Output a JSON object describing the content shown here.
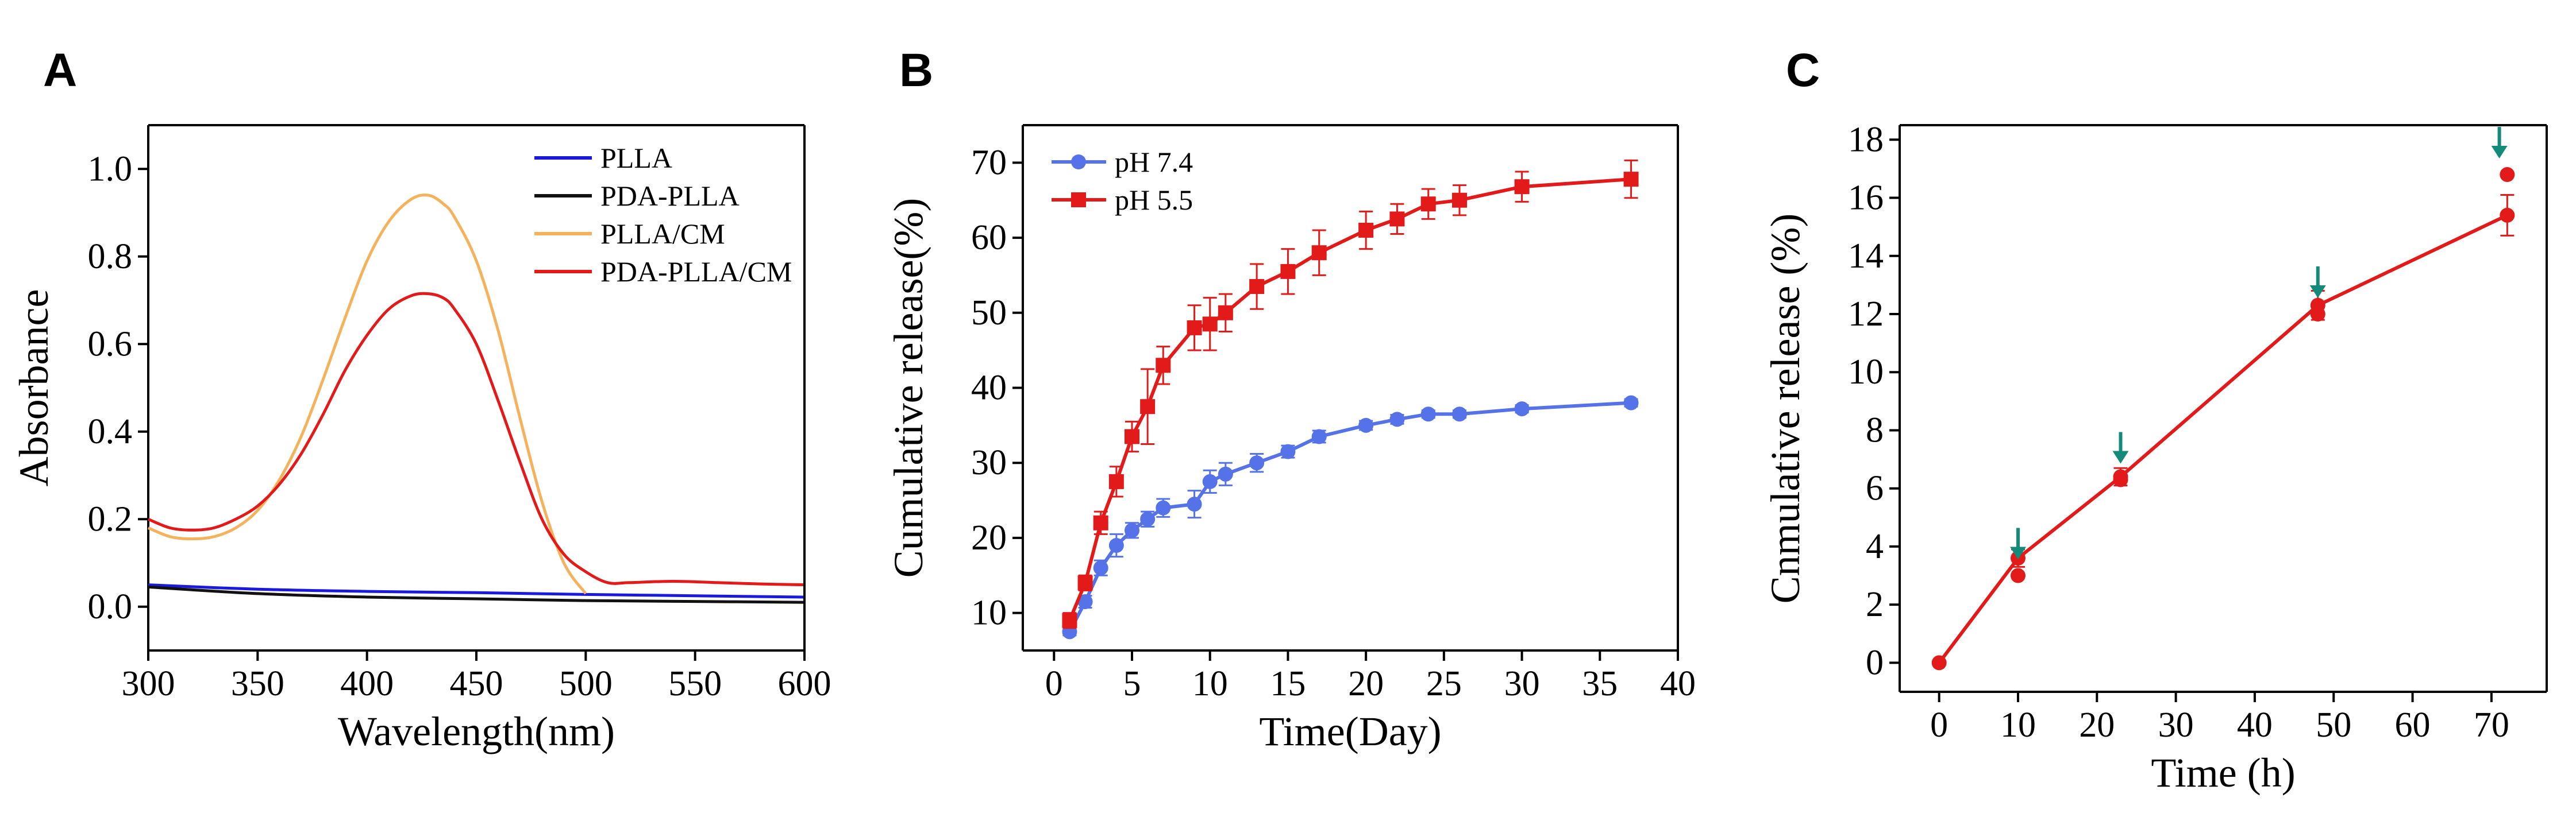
{
  "colors": {
    "axis": "#000000",
    "pllA": "#1a1adc",
    "pdaPlla": "#111111",
    "pllaCm": "#f4b25c",
    "pdaPllaCm": "#e21a1a",
    "ph74": "#5572e8",
    "ph55": "#e21a1a",
    "cRelease": "#e21a1a",
    "arrow": "#138a7a"
  },
  "chart_data": [
    {
      "panel": "A",
      "type": "line",
      "xlabel": "Wavelength(nm)",
      "ylabel": "Absorbance",
      "xlim": [
        300,
        600
      ],
      "ylim": [
        -0.1,
        1.1
      ],
      "xticks": [
        300,
        350,
        400,
        450,
        500,
        550,
        600
      ],
      "yticks": [
        0.0,
        0.2,
        0.4,
        0.6,
        0.8,
        1.0
      ],
      "xtick_labels": [
        "300",
        "350",
        "400",
        "450",
        "500",
        "550",
        "600"
      ],
      "ytick_labels": [
        "0.0",
        "0.2",
        "0.4",
        "0.6",
        "0.8",
        "1.0"
      ],
      "legend": "top-right",
      "series": [
        {
          "name": "PLLA",
          "color_key": "pllA",
          "x": [
            300,
            350,
            400,
            450,
            500,
            550,
            600
          ],
          "y": [
            0.05,
            0.04,
            0.035,
            0.032,
            0.028,
            0.025,
            0.022
          ]
        },
        {
          "name": "PDA-PLLA",
          "color_key": "pdaPlla",
          "x": [
            300,
            350,
            400,
            450,
            500,
            550,
            600
          ],
          "y": [
            0.045,
            0.03,
            0.022,
            0.018,
            0.014,
            0.012,
            0.01
          ]
        },
        {
          "name": "PLLA/CM",
          "color_key": "pllaCm",
          "x": [
            300,
            310,
            320,
            330,
            340,
            350,
            360,
            370,
            380,
            390,
            400,
            410,
            420,
            428,
            435,
            440,
            450,
            460,
            470,
            480,
            490,
            500
          ],
          "y": [
            0.18,
            0.16,
            0.155,
            0.16,
            0.18,
            0.22,
            0.29,
            0.39,
            0.52,
            0.66,
            0.79,
            0.88,
            0.93,
            0.94,
            0.92,
            0.89,
            0.79,
            0.63,
            0.43,
            0.24,
            0.1,
            0.03
          ]
        },
        {
          "name": "PDA-PLLA/CM",
          "color_key": "pdaPllaCm",
          "x": [
            300,
            310,
            320,
            330,
            340,
            350,
            360,
            370,
            380,
            390,
            400,
            410,
            420,
            428,
            435,
            440,
            450,
            460,
            470,
            480,
            490,
            500,
            510,
            520,
            540,
            560,
            580,
            600
          ],
          "y": [
            0.2,
            0.18,
            0.175,
            0.18,
            0.2,
            0.23,
            0.28,
            0.35,
            0.44,
            0.54,
            0.62,
            0.68,
            0.71,
            0.715,
            0.705,
            0.68,
            0.6,
            0.47,
            0.33,
            0.2,
            0.12,
            0.08,
            0.055,
            0.055,
            0.058,
            0.055,
            0.052,
            0.05
          ]
        }
      ]
    },
    {
      "panel": "B",
      "type": "line",
      "xlabel": "Time(Day)",
      "ylabel": "Cumulative release(%)",
      "xlim": [
        -2,
        40
      ],
      "ylim": [
        5,
        75
      ],
      "xticks": [
        0,
        5,
        10,
        15,
        20,
        25,
        30,
        35,
        40
      ],
      "yticks": [
        10,
        20,
        30,
        40,
        50,
        60,
        70
      ],
      "xtick_labels": [
        "0",
        "5",
        "10",
        "15",
        "20",
        "25",
        "30",
        "35",
        "40"
      ],
      "ytick_labels": [
        "10",
        "20",
        "30",
        "40",
        "50",
        "60",
        "70"
      ],
      "legend": "top-left",
      "series": [
        {
          "name": "pH 7.4",
          "color_key": "ph74",
          "marker": "circle",
          "x": [
            1,
            2,
            3,
            4,
            5,
            6,
            7,
            9,
            10,
            11,
            13,
            15,
            17,
            20,
            22,
            24,
            26,
            30,
            37
          ],
          "y": [
            7.5,
            11.5,
            16,
            19,
            21,
            22.5,
            24,
            24.5,
            27.5,
            28.5,
            30,
            31.5,
            33.5,
            35,
            35.8,
            36.5,
            36.5,
            37.2,
            38
          ],
          "err": [
            0.5,
            0.8,
            1.0,
            1.5,
            1.0,
            1.0,
            1.2,
            1.8,
            1.5,
            1.5,
            1.2,
            0.8,
            0.8,
            0.6,
            0.6,
            0.5,
            0.5,
            0.5,
            0.5
          ]
        },
        {
          "name": "pH 5.5",
          "color_key": "ph55",
          "marker": "square",
          "x": [
            1,
            2,
            3,
            4,
            5,
            6,
            7,
            9,
            10,
            11,
            13,
            15,
            17,
            20,
            22,
            24,
            26,
            30,
            37
          ],
          "y": [
            9,
            14,
            22,
            27.5,
            33.5,
            37.5,
            43,
            48,
            48.5,
            50,
            53.5,
            55.5,
            58,
            61,
            62.5,
            64.5,
            65,
            66.8,
            67.8
          ],
          "err": [
            1.0,
            1.0,
            1.5,
            2.0,
            2.0,
            5.0,
            2.5,
            3.0,
            3.5,
            2.5,
            3.0,
            3.0,
            3.0,
            2.5,
            2.0,
            2.0,
            2.0,
            2.0,
            2.5
          ]
        }
      ]
    },
    {
      "panel": "C",
      "type": "line",
      "xlabel": "Time (h)",
      "ylabel": "Cnmulative release (%)",
      "xlim": [
        -5,
        77
      ],
      "ylim": [
        -1,
        18.5
      ],
      "xticks": [
        0,
        10,
        20,
        30,
        40,
        50,
        60,
        70
      ],
      "yticks": [
        0,
        2,
        4,
        6,
        8,
        10,
        12,
        14,
        16,
        18
      ],
      "xtick_labels": [
        "0",
        "10",
        "20",
        "30",
        "40",
        "50",
        "60",
        "70"
      ],
      "ytick_labels": [
        "0",
        "2",
        "4",
        "6",
        "8",
        "10",
        "12",
        "14",
        "16",
        "18"
      ],
      "series": [
        {
          "name": "Cumulative release",
          "color_key": "cRelease",
          "marker": "circle",
          "x": [
            0,
            10,
            23,
            48,
            72
          ],
          "y": [
            0,
            3.6,
            6.4,
            12.3,
            15.4
          ],
          "err": [
            0.05,
            0.3,
            0.3,
            0.5,
            0.7
          ]
        }
      ],
      "extra_points": [
        {
          "x": 10,
          "y": 3.0
        },
        {
          "x": 23,
          "y": 6.3
        },
        {
          "x": 48,
          "y": 12.0
        },
        {
          "x": 72,
          "y": 16.8
        }
      ],
      "arrows_at_x": [
        10,
        23,
        48,
        71
      ]
    }
  ]
}
